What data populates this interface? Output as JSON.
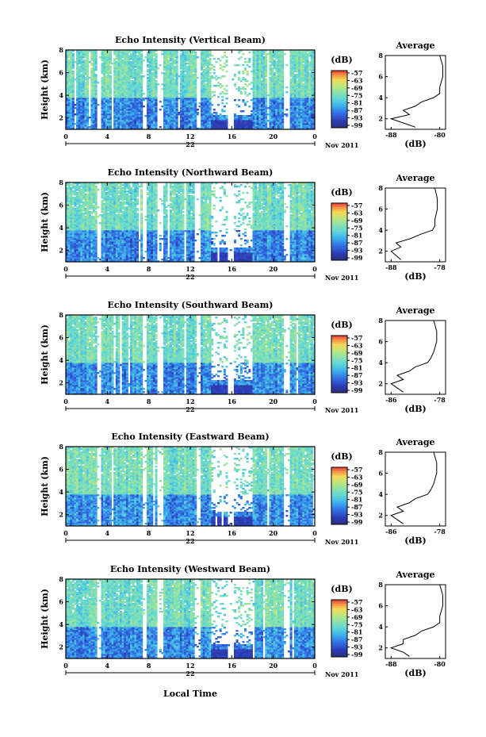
{
  "figure": {
    "x_axis_label": "Local Time",
    "date_day": "22",
    "date_month_year": "Nov 2011",
    "y_axis_label": "Height (km)",
    "colorbar_unit": "(dB)",
    "avg_title": "Average",
    "avg_xlabel": "(dB)"
  },
  "chart_data": [
    {
      "type": "heatmap",
      "title": "Echo Intensity (Vertical Beam)",
      "xlabel": "",
      "ylabel": "Height (km)",
      "x_ticks": [
        "0",
        "4",
        "8",
        "12",
        "16",
        "20",
        "0"
      ],
      "y_ticks": [
        "2",
        "4",
        "6",
        "8"
      ],
      "xlim": [
        0,
        24
      ],
      "ylim": [
        1,
        8
      ],
      "colorbar": {
        "unit": "(dB)",
        "ticks": [
          "-57",
          "-63",
          "-69",
          "-75",
          "-81",
          "-87",
          "-93",
          "-99"
        ],
        "range": [
          -99,
          -57
        ]
      },
      "average_profile": {
        "title": "Average",
        "xlabel": "(dB)",
        "x_ticks": [
          "-88",
          "-80"
        ],
        "y_ticks": [
          "2",
          "4",
          "6",
          "8"
        ],
        "heights": [
          1.2,
          1.6,
          2.0,
          2.4,
          2.8,
          3.2,
          3.6,
          4.0,
          4.4,
          5.0,
          6.0,
          7.0,
          8.0
        ],
        "values": [
          -84,
          -86,
          -88,
          -85,
          -86,
          -84,
          -83,
          -81,
          -80,
          -80,
          -79.5,
          -79.5,
          -80
        ]
      }
    },
    {
      "type": "heatmap",
      "title": "Echo Intensity (Northward Beam)",
      "xlabel": "",
      "ylabel": "Height (km)",
      "x_ticks": [
        "0",
        "4",
        "8",
        "12",
        "16",
        "20",
        "0"
      ],
      "y_ticks": [
        "2",
        "4",
        "6",
        "8"
      ],
      "xlim": [
        0,
        24
      ],
      "ylim": [
        1,
        8
      ],
      "colorbar": {
        "unit": "(dB)",
        "ticks": [
          "-57",
          "-63",
          "-69",
          "-75",
          "-81",
          "-87",
          "-93",
          "-99"
        ],
        "range": [
          -99,
          -57
        ]
      },
      "average_profile": {
        "title": "Average",
        "xlabel": "(dB)",
        "x_ticks": [
          "-88",
          "-78"
        ],
        "y_ticks": [
          "2",
          "4",
          "6",
          "8"
        ],
        "heights": [
          1.2,
          1.6,
          2.0,
          2.4,
          2.8,
          3.2,
          3.6,
          4.0,
          4.4,
          5.0,
          6.0,
          7.0,
          8.0
        ],
        "values": [
          -86,
          -87,
          -88,
          -86,
          -87,
          -84,
          -82,
          -79.5,
          -79,
          -79,
          -78.5,
          -78.5,
          -79
        ]
      }
    },
    {
      "type": "heatmap",
      "title": "Echo Intensity (Southward Beam)",
      "xlabel": "",
      "ylabel": "Height (km)",
      "x_ticks": [
        "0",
        "4",
        "8",
        "12",
        "16",
        "20",
        "0"
      ],
      "y_ticks": [
        "2",
        "4",
        "6",
        "8"
      ],
      "xlim": [
        0,
        24
      ],
      "ylim": [
        1,
        8
      ],
      "colorbar": {
        "unit": "(dB)",
        "ticks": [
          "-57",
          "-63",
          "-69",
          "-75",
          "-81",
          "-87",
          "-93",
          "-99"
        ],
        "range": [
          -99,
          -57
        ]
      },
      "average_profile": {
        "title": "Average",
        "xlabel": "(dB)",
        "x_ticks": [
          "-86",
          "-78"
        ],
        "y_ticks": [
          "2",
          "4",
          "6",
          "8"
        ],
        "heights": [
          1.2,
          1.6,
          2.0,
          2.4,
          2.8,
          3.2,
          3.6,
          4.0,
          4.4,
          5.0,
          6.0,
          7.0,
          8.0
        ],
        "values": [
          -84,
          -85,
          -86,
          -84,
          -85,
          -83,
          -82,
          -80,
          -79.5,
          -79,
          -78.5,
          -78.5,
          -79
        ]
      }
    },
    {
      "type": "heatmap",
      "title": "Echo Intensity (Eastward Beam)",
      "xlabel": "",
      "ylabel": "Height (km)",
      "x_ticks": [
        "0",
        "4",
        "8",
        "12",
        "16",
        "20",
        "0"
      ],
      "y_ticks": [
        "2",
        "4",
        "6",
        "8"
      ],
      "xlim": [
        0,
        24
      ],
      "ylim": [
        1,
        8
      ],
      "colorbar": {
        "unit": "(dB)",
        "ticks": [
          "-57",
          "-63",
          "-69",
          "-75",
          "-81",
          "-87",
          "-93",
          "-99"
        ],
        "range": [
          -99,
          -57
        ]
      },
      "average_profile": {
        "title": "Average",
        "xlabel": "(dB)",
        "x_ticks": [
          "-86",
          "-78"
        ],
        "y_ticks": [
          "2",
          "4",
          "6",
          "8"
        ],
        "heights": [
          1.2,
          1.6,
          2.0,
          2.4,
          2.8,
          3.2,
          3.6,
          4.0,
          4.4,
          5.0,
          6.0,
          7.0,
          8.0
        ],
        "values": [
          -84,
          -85,
          -86,
          -84,
          -85,
          -83,
          -82,
          -80,
          -79.5,
          -79,
          -78.5,
          -78.5,
          -79
        ]
      }
    },
    {
      "type": "heatmap",
      "title": "Echo Intensity (Westward Beam)",
      "xlabel": "Local Time",
      "ylabel": "Height (km)",
      "x_ticks": [
        "0",
        "4",
        "8",
        "12",
        "16",
        "20",
        "0"
      ],
      "y_ticks": [
        "2",
        "4",
        "6",
        "8"
      ],
      "xlim": [
        0,
        24
      ],
      "ylim": [
        1,
        8
      ],
      "colorbar": {
        "unit": "(dB)",
        "ticks": [
          "-57",
          "-63",
          "-69",
          "-75",
          "-81",
          "-87",
          "-93",
          "-99"
        ],
        "range": [
          -99,
          -57
        ]
      },
      "average_profile": {
        "title": "Average",
        "xlabel": "(dB)",
        "x_ticks": [
          "-88",
          "-80"
        ],
        "y_ticks": [
          "2",
          "4",
          "6",
          "8"
        ],
        "heights": [
          1.2,
          1.6,
          2.0,
          2.4,
          2.8,
          3.2,
          3.6,
          4.0,
          4.4,
          5.0,
          6.0,
          7.0,
          8.0
        ],
        "values": [
          -85,
          -86,
          -88,
          -86,
          -86,
          -84,
          -83,
          -81,
          -80,
          -80,
          -79.5,
          -79.5,
          -80
        ]
      }
    }
  ]
}
